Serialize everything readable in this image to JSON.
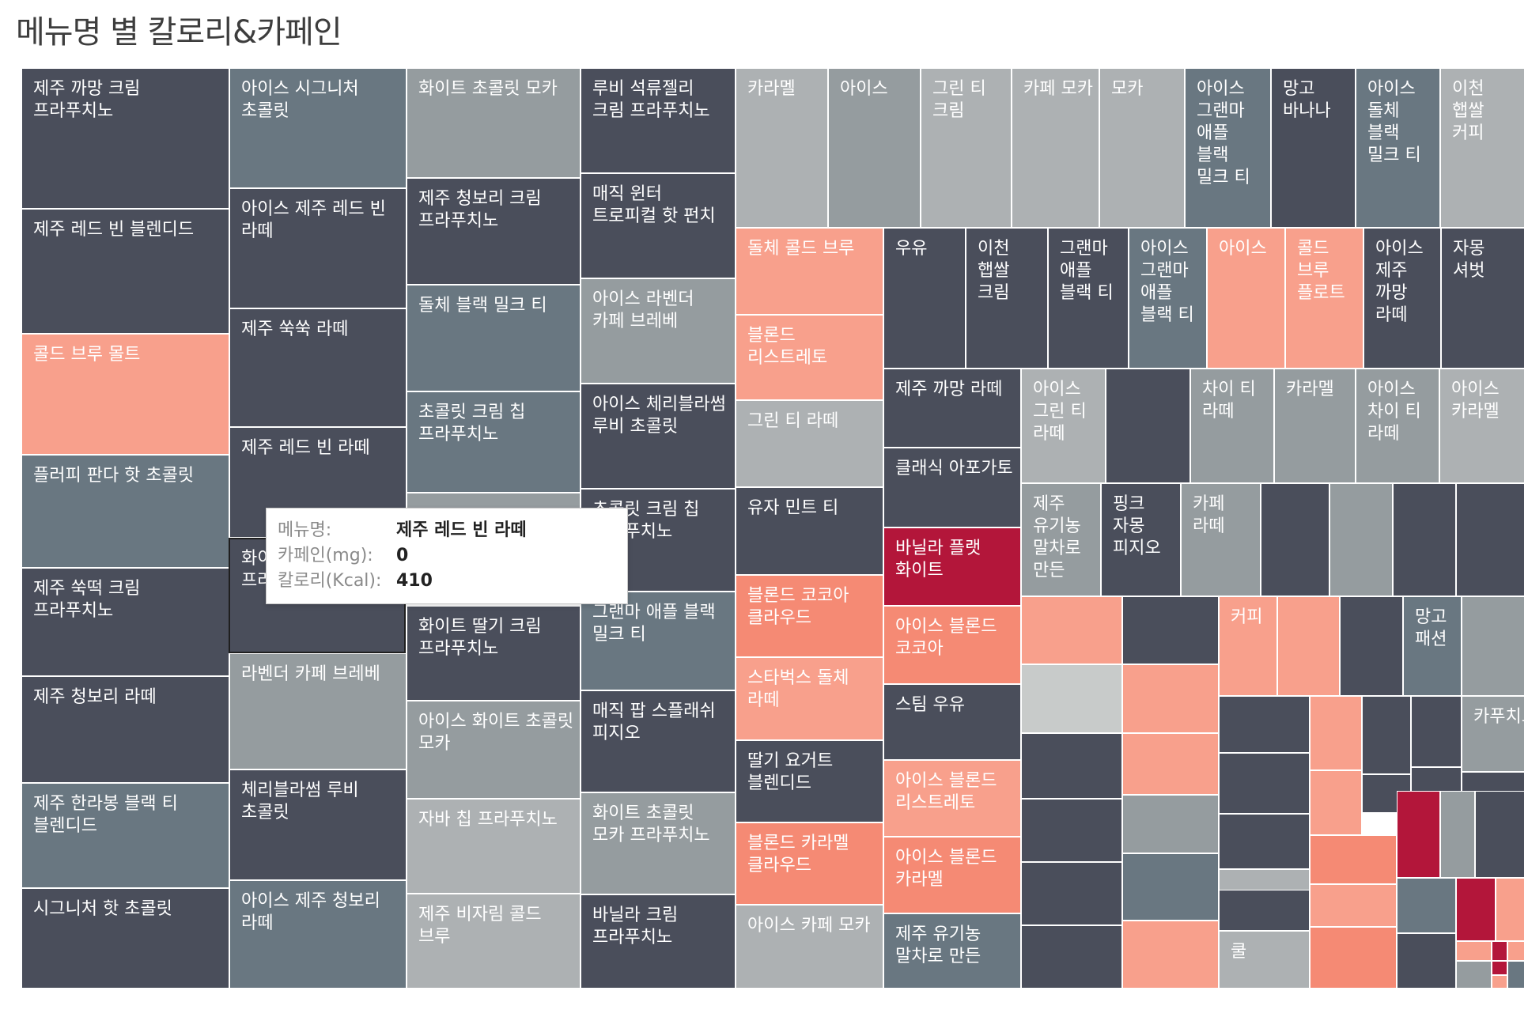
{
  "title": "메뉴명 별 칼로리&카페인",
  "tooltip": {
    "menu_key": "메뉴명:",
    "menu_val": "제주 레드 빈 라떼",
    "caffeine_key": "카페인(mg):",
    "caffeine_val": "0",
    "calorie_key": "칼로리(Kcal):",
    "calorie_val": "410"
  },
  "colors": {
    "dark": "#4a4e5b",
    "slate": "#697781",
    "gray": "#959c9f",
    "lightgray": "#adb1b3",
    "pale": "#c8cbca",
    "salmon": "#f8a08c",
    "coral": "#f58a74",
    "crimson": "#b3163a"
  },
  "chart_data": {
    "type": "treemap",
    "title": "메뉴명 별 칼로리&카페인",
    "size_measure": "칼로리(Kcal)",
    "color_measure": "카페인(mg)",
    "items": [
      {
        "name": "제주 까망 크림 프라푸치노",
        "color": "dark"
      },
      {
        "name": "제주 레드 빈 블렌디드",
        "color": "dark"
      },
      {
        "name": "콜드 브루 몰트",
        "color": "salmon"
      },
      {
        "name": "플러피 판다 핫 초콜릿",
        "color": "slate"
      },
      {
        "name": "제주 쑥떡 크림 프라푸치노",
        "color": "dark"
      },
      {
        "name": "제주 청보리 라떼",
        "color": "dark"
      },
      {
        "name": "제주 한라봉 블랙 티 블렌디드",
        "color": "slate"
      },
      {
        "name": "시그니처 핫 초콜릿",
        "color": "dark"
      },
      {
        "name": "아이스 시그니처 초콜릿",
        "color": "slate"
      },
      {
        "name": "아이스 제주 레드 빈 라떼",
        "color": "dark"
      },
      {
        "name": "제주 쑥쑥 라떼",
        "color": "dark"
      },
      {
        "name": "제주 레드 빈 라떼",
        "color": "dark",
        "caffeine_mg": 0,
        "calorie_kcal": 410
      },
      {
        "name": "화이트 초콜릿 모카 프라푸치노",
        "color": "dark"
      },
      {
        "name": "라벤더 카페 브레베",
        "color": "gray"
      },
      {
        "name": "체리블라썸 루비 초콜릿",
        "color": "dark"
      },
      {
        "name": "아이스 제주 청보리 라떼",
        "color": "slate"
      },
      {
        "name": "화이트 초콜릿 모카",
        "color": "gray"
      },
      {
        "name": "제주 청보리 크림 프라푸치노",
        "color": "dark"
      },
      {
        "name": "돌체 블랙 밀크 티",
        "color": "slate"
      },
      {
        "name": "초콜릿 크림 칩 프라푸치노",
        "color": "slate"
      },
      {
        "name": "화이트 딸기 크림 프라푸치노",
        "color": "dark"
      },
      {
        "name": "아이스 화이트 초콜릿 모카",
        "color": "gray"
      },
      {
        "name": "자바 칩 프라푸치노",
        "color": "lightgray"
      },
      {
        "name": "제주 비자림 콜드 브루",
        "color": "lightgray"
      },
      {
        "name": "루비 석류젤리 크림 프라푸치노",
        "color": "dark"
      },
      {
        "name": "매직 윈터 트로피컬 핫 펀치",
        "color": "dark"
      },
      {
        "name": "아이스 라벤더 카페 브레베",
        "color": "gray"
      },
      {
        "name": "아이스 체리블라썸 루비 초콜릿",
        "color": "dark"
      },
      {
        "name": "초콜릿 크림 칩 프라푸치노",
        "color": "dark"
      },
      {
        "name": "그랜마 애플 블랙 밀크 티",
        "color": "slate"
      },
      {
        "name": "매직 팝 스플래쉬 피지오",
        "color": "dark"
      },
      {
        "name": "화이트 초콜릿 모카 프라푸치노",
        "color": "gray"
      },
      {
        "name": "바닐라 크림 프라푸치노",
        "color": "dark"
      },
      {
        "name": "카라멜",
        "color": "lightgray"
      },
      {
        "name": "아이스",
        "color": "gray"
      },
      {
        "name": "그린 티 크림",
        "color": "lightgray"
      },
      {
        "name": "카페 모카",
        "color": "lightgray"
      },
      {
        "name": "모카",
        "color": "lightgray"
      },
      {
        "name": "아이스 그랜마 애플 블랙 밀크 티",
        "color": "slate"
      },
      {
        "name": "망고 바나나",
        "color": "dark"
      },
      {
        "name": "아이스 돌체 블랙 밀크 티",
        "color": "slate"
      },
      {
        "name": "이천 햅쌀 커피",
        "color": "lightgray"
      },
      {
        "name": "돌체 콜드 브루",
        "color": "salmon"
      },
      {
        "name": "블론드 리스트레토",
        "color": "salmon"
      },
      {
        "name": "그린 티 라떼",
        "color": "lightgray"
      },
      {
        "name": "유자 민트 티",
        "color": "dark"
      },
      {
        "name": "블론드 코코아 클라우드",
        "color": "coral"
      },
      {
        "name": "스타벅스 돌체 라떼",
        "color": "salmon"
      },
      {
        "name": "딸기 요거트 블렌디드",
        "color": "dark"
      },
      {
        "name": "블론드 카라멜 클라우드",
        "color": "coral"
      },
      {
        "name": "아이스 카페 모카",
        "color": "lightgray"
      },
      {
        "name": "우유",
        "color": "dark"
      },
      {
        "name": "이천 햅쌀 크림",
        "color": "dark"
      },
      {
        "name": "그랜마 애플 블랙 티",
        "color": "dark"
      },
      {
        "name": "아이스 그랜마 애플 블랙 티",
        "color": "slate"
      },
      {
        "name": "아이스",
        "color": "salmon"
      },
      {
        "name": "콜드 브루 플로트",
        "color": "salmon"
      },
      {
        "name": "아이스 제주 까망 라떼",
        "color": "dark"
      },
      {
        "name": "자몽 셔벗",
        "color": "dark"
      },
      {
        "name": "제주 까망 라떼",
        "color": "dark"
      },
      {
        "name": "클래식 아포가토",
        "color": "dark"
      },
      {
        "name": "바닐라 플랫 화이트",
        "color": "crimson"
      },
      {
        "name": "아이스 블론드 코코아",
        "color": "coral"
      },
      {
        "name": "스팀 우유",
        "color": "dark"
      },
      {
        "name": "아이스 블론드 리스트레토",
        "color": "salmon"
      },
      {
        "name": "아이스 블론드 카라멜",
        "color": "coral"
      },
      {
        "name": "제주 유기농 말차로 만든",
        "color": "slate"
      },
      {
        "name": "아이스 그린 티 라떼",
        "color": "lightgray"
      },
      {
        "name": "차이 티 라떼",
        "color": "gray"
      },
      {
        "name": "카라멜",
        "color": "gray"
      },
      {
        "name": "아이스 차이 티 라떼",
        "color": "gray"
      },
      {
        "name": "아이스 카라멜",
        "color": "lightgray"
      },
      {
        "name": "제주 유기농 말차로 만든",
        "color": "gray"
      },
      {
        "name": "핑크 자몽 피지오",
        "color": "dark"
      },
      {
        "name": "카페 라떼",
        "color": "gray"
      },
      {
        "name": "커피",
        "color": "salmon"
      },
      {
        "name": "망고 패션",
        "color": "slate"
      },
      {
        "name": "쿨",
        "color": "gray"
      },
      {
        "name": "카푸치노",
        "color": "lightgray"
      }
    ]
  }
}
